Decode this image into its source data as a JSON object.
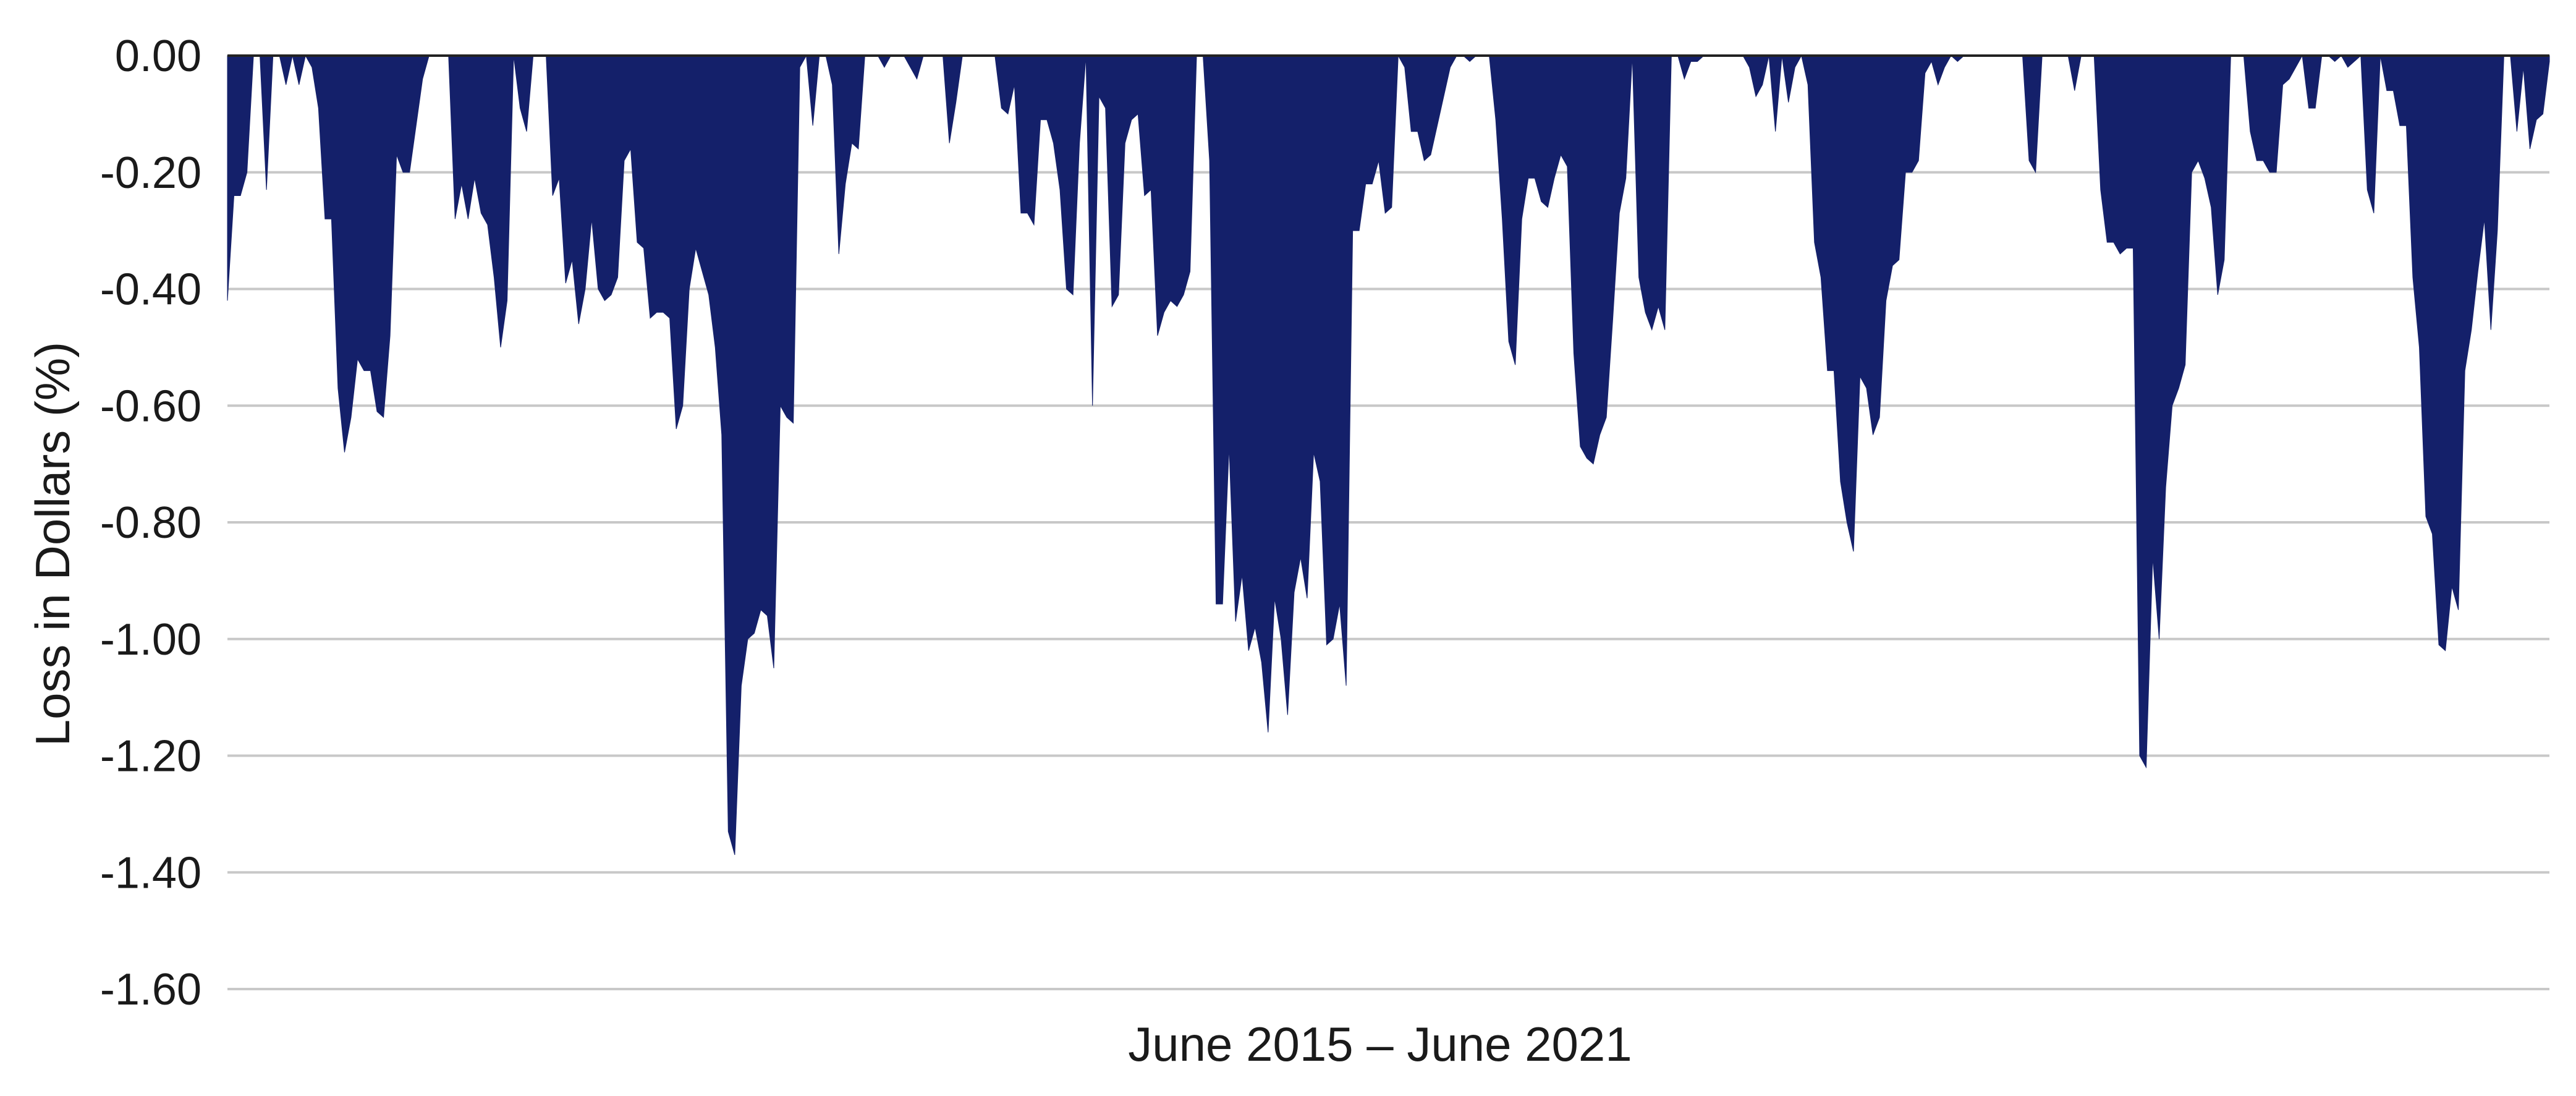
{
  "chart_data": {
    "type": "area",
    "title": "",
    "xlabel": "June 2015 – June 2021",
    "ylabel": "Loss in Dollars (%)",
    "ylim": [
      -1.6,
      0.0
    ],
    "yticks": [
      0.0,
      -0.2,
      -0.4,
      -0.6,
      -0.8,
      -1.0,
      -1.2,
      -1.4,
      -1.6
    ],
    "ytick_labels": [
      "0.00",
      "-0.20",
      "-0.40",
      "-0.60",
      "-0.80",
      "-1.00",
      "-1.20",
      "-1.40",
      "-1.60"
    ],
    "grid": true,
    "legend": "none",
    "fill_color": "#14206a",
    "x_start": "June 2015",
    "x_end": "June 2021",
    "series": [
      {
        "values": [
          -0.42,
          -0.24,
          -0.24,
          -0.2,
          0,
          0,
          -0.23,
          0,
          0,
          -0.05,
          0,
          -0.05,
          0,
          -0.02,
          -0.09,
          -0.28,
          -0.28,
          -0.57,
          -0.68,
          -0.62,
          -0.52,
          -0.54,
          -0.54,
          -0.61,
          -0.62,
          -0.48,
          -0.17,
          -0.2,
          -0.2,
          -0.12,
          -0.04,
          0,
          0,
          0,
          0,
          -0.28,
          -0.22,
          -0.28,
          -0.21,
          -0.27,
          -0.29,
          -0.38,
          -0.5,
          -0.42,
          0,
          -0.09,
          -0.13,
          0,
          0,
          0,
          -0.24,
          -0.21,
          -0.39,
          -0.35,
          -0.46,
          -0.4,
          -0.28,
          -0.4,
          -0.42,
          -0.41,
          -0.38,
          -0.18,
          -0.16,
          -0.32,
          -0.33,
          -0.45,
          -0.44,
          -0.44,
          -0.45,
          -0.64,
          -0.6,
          -0.4,
          -0.33,
          -0.37,
          -0.41,
          -0.5,
          -0.65,
          -1.33,
          -1.37,
          -1.08,
          -1.0,
          -0.99,
          -0.95,
          -0.96,
          -1.05,
          -0.6,
          -0.62,
          -0.63,
          -0.02,
          0,
          -0.12,
          0,
          0,
          -0.05,
          -0.34,
          -0.22,
          -0.15,
          -0.16,
          0,
          0,
          0,
          -0.02,
          0,
          0,
          0,
          -0.02,
          -0.04,
          0,
          0,
          0,
          0,
          -0.15,
          -0.08,
          0,
          0,
          0,
          0,
          0,
          0,
          -0.09,
          -0.1,
          -0.05,
          -0.27,
          -0.27,
          -0.29,
          -0.11,
          -0.11,
          -0.15,
          -0.23,
          -0.4,
          -0.41,
          -0.15,
          0,
          -0.6,
          -0.07,
          -0.09,
          -0.43,
          -0.41,
          -0.15,
          -0.11,
          -0.1,
          -0.24,
          -0.23,
          -0.48,
          -0.44,
          -0.42,
          -0.43,
          -0.41,
          -0.37,
          0,
          0,
          -0.18,
          -0.94,
          -0.94,
          -0.67,
          -0.97,
          -0.89,
          -1.02,
          -0.98,
          -1.04,
          -1.16,
          -0.93,
          -1.0,
          -1.13,
          -0.92,
          -0.86,
          -0.93,
          -0.68,
          -0.73,
          -1.01,
          -1.0,
          -0.94,
          -1.08,
          -0.3,
          -0.3,
          -0.22,
          -0.22,
          -0.18,
          -0.27,
          -0.26,
          0,
          -0.02,
          -0.13,
          -0.13,
          -0.18,
          -0.17,
          -0.12,
          -0.07,
          -0.02,
          0,
          0,
          -0.01,
          0,
          0,
          0,
          -0.11,
          -0.28,
          -0.49,
          -0.53,
          -0.28,
          -0.21,
          -0.21,
          -0.25,
          -0.26,
          -0.21,
          -0.17,
          -0.19,
          -0.51,
          -0.67,
          -0.69,
          -0.7,
          -0.65,
          -0.62,
          -0.45,
          -0.27,
          -0.21,
          0,
          -0.38,
          -0.44,
          -0.47,
          -0.43,
          -0.47,
          0,
          0,
          -0.04,
          -0.01,
          -0.01,
          0,
          0,
          0,
          0,
          0,
          0,
          0,
          -0.02,
          -0.07,
          -0.05,
          0,
          -0.13,
          0,
          -0.08,
          -0.02,
          0,
          -0.05,
          -0.32,
          -0.38,
          -0.54,
          -0.54,
          -0.73,
          -0.8,
          -0.85,
          -0.55,
          -0.57,
          -0.65,
          -0.62,
          -0.42,
          -0.36,
          -0.35,
          -0.2,
          -0.2,
          -0.18,
          -0.03,
          -0.01,
          -0.05,
          -0.02,
          0,
          -0.01,
          0,
          0,
          0,
          0,
          0,
          0,
          0,
          0,
          0,
          0,
          -0.18,
          -0.2,
          0,
          0,
          0,
          0,
          0,
          -0.06,
          0,
          0,
          0,
          -0.23,
          -0.32,
          -0.32,
          -0.34,
          -0.33,
          -0.33,
          -1.2,
          -1.22,
          -0.86,
          -1.0,
          -0.74,
          -0.6,
          -0.57,
          -0.53,
          -0.2,
          -0.18,
          -0.21,
          -0.26,
          -0.41,
          -0.35,
          0,
          0,
          0,
          -0.13,
          -0.18,
          -0.18,
          -0.2,
          -0.2,
          -0.05,
          -0.04,
          -0.02,
          0,
          -0.09,
          -0.09,
          0,
          0,
          -0.01,
          0,
          -0.02,
          -0.01,
          0,
          -0.23,
          -0.27,
          0,
          -0.06,
          -0.06,
          -0.12,
          -0.12,
          -0.38,
          -0.5,
          -0.79,
          -0.82,
          -1.01,
          -1.02,
          -0.91,
          -0.95,
          -0.54,
          -0.47,
          -0.37,
          -0.28,
          -0.47,
          -0.3,
          0,
          0,
          -0.13,
          -0.02,
          -0.16,
          -0.11,
          -0.1,
          -0.01
        ]
      }
    ]
  }
}
